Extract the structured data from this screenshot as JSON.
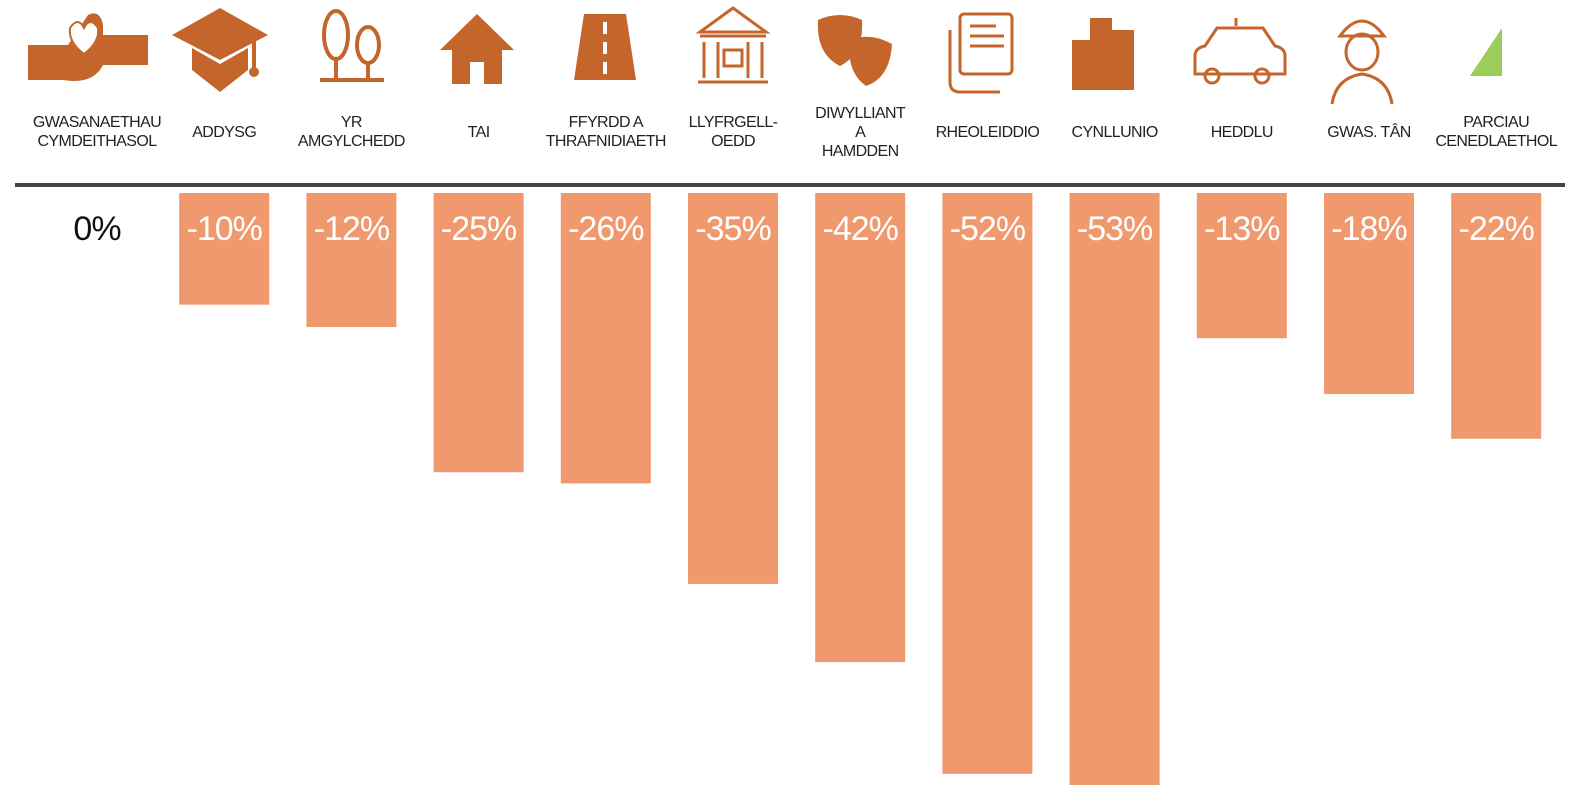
{
  "chart_data": {
    "type": "bar",
    "categories": [
      "GWASANAETHAU\nCYMDEITHASOL",
      "ADDYSG",
      "YR\nAMGYLCHEDD",
      "TAI",
      "FFYRDD A\nTHRAFNIDIAETH",
      "LLYFRGELL-\nOEDD",
      "DIWYLLIANT\nA\nHAMDDEN",
      "RHEOLEIDDIO",
      "CYNLLUNIO",
      "HEDDLU",
      "GWAS. TÂN",
      "PARCIAU\nCENEDLAETHOL"
    ],
    "values": [
      0,
      -10,
      -12,
      -25,
      -26,
      -35,
      -42,
      -52,
      -53,
      -13,
      -18,
      -22
    ],
    "value_labels": [
      "0%",
      "-10%",
      "-12%",
      "-25%",
      "-26%",
      "-35%",
      "-42%",
      "-52%",
      "-53%",
      "-13%",
      "-18%",
      "-22%"
    ],
    "color": "#f0996f"
  }
}
